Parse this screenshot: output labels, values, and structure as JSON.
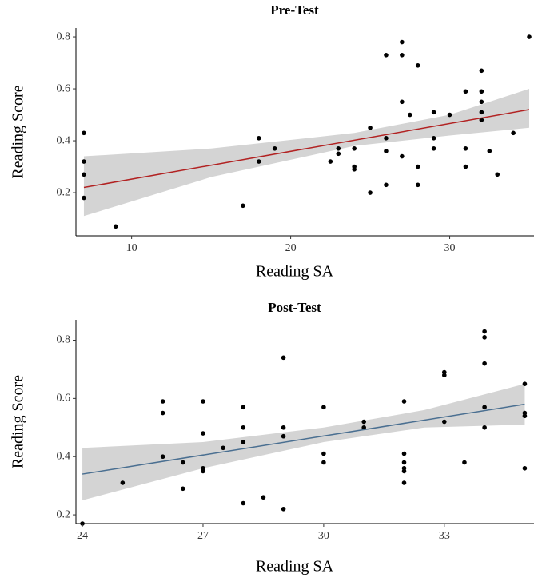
{
  "chart_data": [
    {
      "type": "scatter",
      "title": "Pre-Test",
      "x_label": "Reading SA",
      "y_label": "Reading Score",
      "x": [
        7,
        7,
        7,
        7,
        9,
        17,
        18,
        18,
        19,
        22.5,
        23,
        23,
        24,
        24,
        24,
        25,
        25,
        26,
        26,
        26,
        26,
        27,
        27,
        27,
        27,
        27.5,
        28,
        28,
        28,
        29,
        29,
        29,
        30,
        31,
        31,
        31,
        32,
        32,
        32,
        32,
        32,
        32.5,
        33,
        34,
        35
      ],
      "y": [
        0.43,
        0.32,
        0.27,
        0.18,
        0.07,
        0.15,
        0.41,
        0.32,
        0.37,
        0.32,
        0.37,
        0.35,
        0.37,
        0.3,
        0.29,
        0.45,
        0.2,
        0.73,
        0.41,
        0.36,
        0.23,
        0.78,
        0.73,
        0.55,
        0.34,
        0.5,
        0.69,
        0.3,
        0.23,
        0.51,
        0.41,
        0.37,
        0.5,
        0.59,
        0.37,
        0.3,
        0.67,
        0.59,
        0.55,
        0.51,
        0.48,
        0.36,
        0.27,
        0.43,
        0.8
      ],
      "color": "#000000",
      "fit": {
        "x": [
          7,
          35
        ],
        "y": [
          0.22,
          0.52
        ],
        "color": "#b22222"
      },
      "band": {
        "x": [
          7,
          15,
          24,
          30,
          35
        ],
        "lower": [
          0.11,
          0.26,
          0.38,
          0.42,
          0.45
        ],
        "upper": [
          0.34,
          0.37,
          0.43,
          0.5,
          0.6
        ],
        "color": "#d4d4d4"
      },
      "xlim": [
        6.5,
        35.3
      ],
      "ylim": [
        0.034,
        0.834
      ],
      "xticks": [
        10,
        20,
        30
      ],
      "yticks": [
        0.2,
        0.4,
        0.6,
        0.8
      ]
    },
    {
      "type": "scatter",
      "title": "Post-Test",
      "x_label": "Reading SA",
      "y_label": "Reading Score",
      "x": [
        24,
        25,
        26,
        26,
        26,
        26.5,
        26.5,
        27,
        27,
        27,
        27,
        27.5,
        28,
        28,
        28,
        28,
        28.5,
        29,
        29,
        29,
        29,
        30,
        30,
        30,
        31,
        31,
        32,
        32,
        32,
        32,
        32,
        32,
        33,
        33,
        33,
        33.5,
        34,
        34,
        34,
        34,
        34,
        35,
        35,
        35,
        35
      ],
      "y": [
        0.17,
        0.31,
        0.59,
        0.55,
        0.4,
        0.38,
        0.29,
        0.59,
        0.48,
        0.36,
        0.35,
        0.43,
        0.57,
        0.5,
        0.45,
        0.24,
        0.26,
        0.74,
        0.5,
        0.47,
        0.22,
        0.57,
        0.41,
        0.38,
        0.52,
        0.5,
        0.59,
        0.41,
        0.38,
        0.36,
        0.35,
        0.31,
        0.69,
        0.68,
        0.52,
        0.38,
        0.83,
        0.81,
        0.72,
        0.57,
        0.5,
        0.65,
        0.55,
        0.54,
        0.36
      ],
      "color": "#000000",
      "fit": {
        "x": [
          24,
          35
        ],
        "y": [
          0.34,
          0.58
        ],
        "color": "#4a6f91"
      },
      "band": {
        "x": [
          24,
          27,
          30,
          32.5,
          35
        ],
        "lower": [
          0.25,
          0.36,
          0.45,
          0.5,
          0.51
        ],
        "upper": [
          0.43,
          0.45,
          0.5,
          0.56,
          0.65
        ],
        "color": "#d4d4d4"
      },
      "xlim": [
        23.84,
        35.23
      ],
      "ylim": [
        0.17,
        0.87
      ],
      "xticks": [
        24,
        27,
        30,
        33
      ],
      "yticks": [
        0.2,
        0.4,
        0.6,
        0.8
      ]
    }
  ]
}
